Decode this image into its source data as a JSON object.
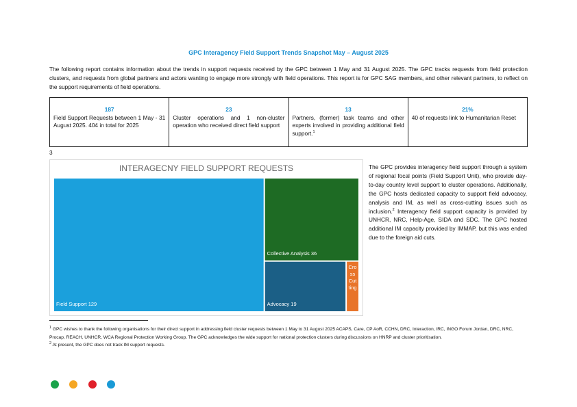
{
  "header": {
    "title": "GPC Interagency Field Support Trends Snapshot May – August 2025"
  },
  "intro": "The following report contains information about the trends in support requests received by the GPC between 1 May and 31 August 2025. The GPC tracks requests from field protection clusters, and requests from global partners and actors wanting to engage more strongly with field operations. This report is for GPC SAG members, and other relevant partners, to reflect on the support requirements of field operations.",
  "stats": [
    {
      "figure": "187",
      "text": "Field Support Requests between 1 May - 31 August 2025. 404 in total for 2025"
    },
    {
      "figure": "23",
      "text": "Cluster operations and 1 non-cluster operation who received direct field support"
    },
    {
      "figure": "13",
      "text": "Partners, (former) task teams and other experts involved in providing additional field support.",
      "note": "1"
    },
    {
      "figure": "21%",
      "text": "40 of requests link to Humanitarian Reset"
    }
  ],
  "page_number": "3",
  "chart_data": {
    "type": "treemap",
    "title": "INTERAGECNY FIELD SUPPORT REQUESTS",
    "categories": [
      "Field Support",
      "Collective Analysis",
      "Advocacy",
      "Cross Cutting"
    ],
    "values": [
      129,
      36,
      19,
      3
    ],
    "value_labels": [
      "129",
      "36",
      "19",
      null
    ],
    "colors": [
      "#1ba0dc",
      "#1e6b24",
      "#1b5f86",
      "#e8742a"
    ]
  },
  "side_text": {
    "before": "The GPC provides interagency field support through a system of regional focal points (Field Support Unit), who provide day-to-day country level support to cluster operations. Additionally, the GPC hosts dedicated capacity to support field advocacy, analysis and IM, as well as cross-cutting issues such as inclusion.",
    "note": "2",
    "after": " Interagency field support capacity is provided by UNHCR, NRC, Help-Age, SIDA and SDC. The GPC hosted additional IM capacity provided by IMMAP, but this was ended due to the foreign aid cuts."
  },
  "footnotes": [
    {
      "marker": "1",
      "text": "GPC wishes to thank the following organisations for their direct support in addressing field cluster requests between 1 May to 31 August 2025 ACAPS, Care, CP AoR, CCHN, DRC, Interaction, IRC, INGO Forum Jordan, DRC, NRC, Procap, REACH, UNHCR, WCA Regional Protection Working Group. The GPC acknowledges the wide support for national protection clusters during discussions on HNRP and cluster prioritisation."
    },
    {
      "marker": "2",
      "text": "At present, the GPC does not track IM support requests."
    }
  ]
}
